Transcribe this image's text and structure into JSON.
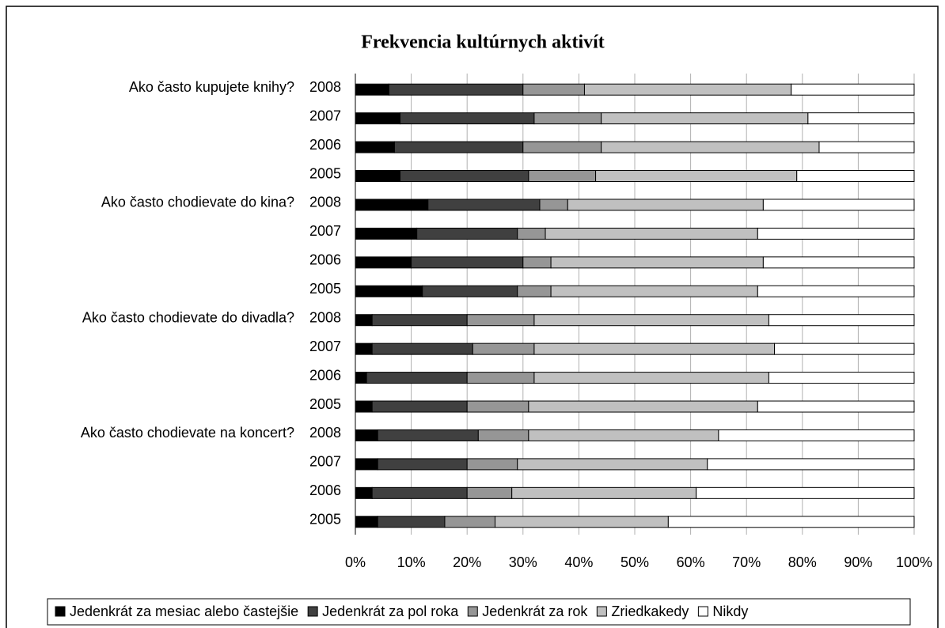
{
  "chart_data": {
    "type": "bar",
    "orientation": "horizontal",
    "stacked": true,
    "title": "Frekvencia kultúrnych aktivít",
    "categories": [
      "2008",
      "2007",
      "2006",
      "2005",
      "2008",
      "2007",
      "2006",
      "2005",
      "2008",
      "2007",
      "2006",
      "2005",
      "2008",
      "2007",
      "2006",
      "2005"
    ],
    "group_labels": [
      "Ako často kupujete knihy?",
      null,
      null,
      null,
      "Ako často chodievate do kina?",
      null,
      null,
      null,
      "Ako často chodievate do divadla?",
      null,
      null,
      null,
      "Ako často chodievate na koncert?",
      null,
      null,
      null
    ],
    "series": [
      {
        "name": "Jedenkrát za mesiac alebo častejšie",
        "color": "#000000",
        "values": [
          6,
          8,
          7,
          8,
          13,
          11,
          10,
          12,
          3,
          3,
          2,
          3,
          4,
          4,
          3,
          4
        ]
      },
      {
        "name": "Jedenkrát za pol roka",
        "color": "#404040",
        "values": [
          24,
          24,
          23,
          23,
          20,
          18,
          20,
          17,
          17,
          18,
          18,
          17,
          18,
          16,
          17,
          12
        ]
      },
      {
        "name": "Jedenkrát za rok",
        "color": "#969696",
        "values": [
          11,
          12,
          14,
          12,
          5,
          5,
          5,
          6,
          12,
          11,
          12,
          11,
          9,
          9,
          8,
          9
        ]
      },
      {
        "name": "Zriedkakedy",
        "color": "#c0c0c0",
        "values": [
          37,
          37,
          39,
          36,
          35,
          38,
          38,
          37,
          42,
          43,
          42,
          41,
          34,
          34,
          33,
          31
        ]
      },
      {
        "name": "Nikdy",
        "color": "#ffffff",
        "values": [
          22,
          19,
          17,
          21,
          27,
          28,
          27,
          28,
          26,
          25,
          26,
          28,
          35,
          37,
          39,
          44
        ]
      }
    ],
    "xlim": [
      0,
      100
    ],
    "xticks": [
      {
        "value": 0,
        "label": "0%"
      },
      {
        "value": 10,
        "label": "10%"
      },
      {
        "value": 20,
        "label": "20%"
      },
      {
        "value": 30,
        "label": "30%"
      },
      {
        "value": 40,
        "label": "40%"
      },
      {
        "value": 50,
        "label": "50%"
      },
      {
        "value": 60,
        "label": "60%"
      },
      {
        "value": 70,
        "label": "70%"
      },
      {
        "value": 80,
        "label": "80%"
      },
      {
        "value": 90,
        "label": "90%"
      },
      {
        "value": 100,
        "label": "100%"
      }
    ],
    "grid": true,
    "legend": "bottom"
  }
}
